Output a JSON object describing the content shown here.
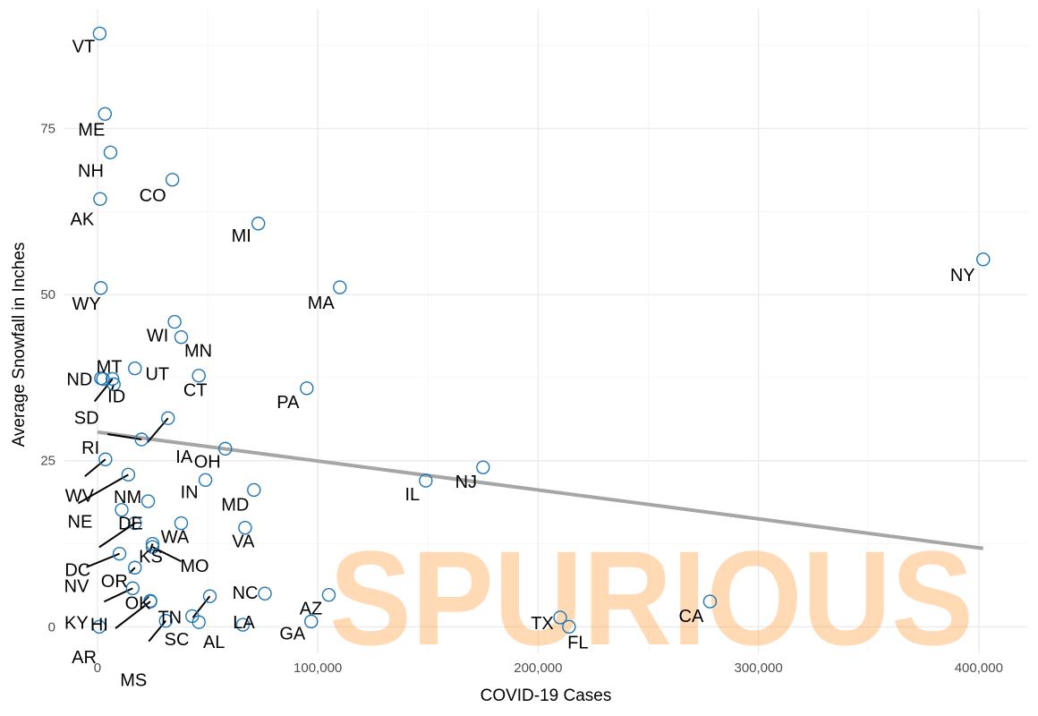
{
  "chart_data": {
    "type": "scatter",
    "title": "",
    "xlabel": "COVID-19 Cases",
    "ylabel": "Average Snowfall in Inches",
    "xlim": [
      -15000,
      422000
    ],
    "ylim": [
      -4,
      93
    ],
    "x_ticks": [
      0,
      100000,
      200000,
      300000,
      400000
    ],
    "x_tick_labels": [
      "0",
      "100,000",
      "200,000",
      "300,000",
      "400,000"
    ],
    "y_ticks": [
      0,
      25,
      50,
      75
    ],
    "y_tick_labels": [
      "0",
      "25",
      "50",
      "75"
    ],
    "grid": true,
    "legend": "none",
    "point_color": "#1f77b4",
    "trend_color": "#a6a6a6",
    "watermark": "SPURIOUS",
    "watermark_color": "#ffa64d",
    "trendline": {
      "x": [
        0,
        402000
      ],
      "y": [
        29.3,
        11.8
      ]
    },
    "points": [
      {
        "label": "VT",
        "x": 1000,
        "y": 89.3
      },
      {
        "label": "ME",
        "x": 3400,
        "y": 77.2
      },
      {
        "label": "NH",
        "x": 5900,
        "y": 71.4
      },
      {
        "label": "CO",
        "x": 34000,
        "y": 67.3
      },
      {
        "label": "AK",
        "x": 1200,
        "y": 64.4
      },
      {
        "label": "MI",
        "x": 73000,
        "y": 60.7
      },
      {
        "label": "NY",
        "x": 402000,
        "y": 55.3
      },
      {
        "label": "WY",
        "x": 1500,
        "y": 51.0
      },
      {
        "label": "MA",
        "x": 110000,
        "y": 51.1
      },
      {
        "label": "WI",
        "x": 35000,
        "y": 45.9
      },
      {
        "label": "MN",
        "x": 38000,
        "y": 43.6
      },
      {
        "label": "MT",
        "x": 2500,
        "y": 37.3
      },
      {
        "label": "UT",
        "x": 17000,
        "y": 38.9
      },
      {
        "label": "ND",
        "x": 1600,
        "y": 37.4
      },
      {
        "label": "ID",
        "x": 7400,
        "y": 36.5
      },
      {
        "label": "CT",
        "x": 46000,
        "y": 37.8
      },
      {
        "label": "PA",
        "x": 95000,
        "y": 35.9
      },
      {
        "label": "SD",
        "x": 6800,
        "y": 37.3
      },
      {
        "label": "IA",
        "x": 32000,
        "y": 31.4
      },
      {
        "label": "RI",
        "x": 20000,
        "y": 28.2
      },
      {
        "label": "OH",
        "x": 58000,
        "y": 26.8
      },
      {
        "label": "WV",
        "x": 3600,
        "y": 25.2
      },
      {
        "label": "NJ",
        "x": 175000,
        "y": 24.0
      },
      {
        "label": "IL",
        "x": 149000,
        "y": 22.0
      },
      {
        "label": "IN",
        "x": 49000,
        "y": 22.1
      },
      {
        "label": "NE",
        "x": 14000,
        "y": 22.9
      },
      {
        "label": "MD",
        "x": 71000,
        "y": 20.6
      },
      {
        "label": "NM",
        "x": 23000,
        "y": 18.9
      },
      {
        "label": "DE",
        "x": 11000,
        "y": 17.6
      },
      {
        "label": "DC",
        "x": 17000,
        "y": 15.6
      },
      {
        "label": "WA",
        "x": 38000,
        "y": 15.6
      },
      {
        "label": "VA",
        "x": 67000,
        "y": 14.9
      },
      {
        "label": "KS",
        "x": 25000,
        "y": 12.5
      },
      {
        "label": "NV",
        "x": 10000,
        "y": 11.0
      },
      {
        "label": "MO",
        "x": 25000,
        "y": 12.0
      },
      {
        "label": "OR",
        "x": 17000,
        "y": 8.9
      },
      {
        "label": "KY",
        "x": 16000,
        "y": 5.8
      },
      {
        "label": "OK",
        "x": 24000,
        "y": 3.9
      },
      {
        "label": "NC",
        "x": 76000,
        "y": 5.0
      },
      {
        "label": "AZ",
        "x": 105000,
        "y": 4.8
      },
      {
        "label": "CA",
        "x": 278000,
        "y": 3.8
      },
      {
        "label": "HI",
        "x": 800,
        "y": 0.0
      },
      {
        "label": "TN",
        "x": 43000,
        "y": 1.6
      },
      {
        "label": "AR",
        "x": 24000,
        "y": 3.8
      },
      {
        "label": "MS",
        "x": 31000,
        "y": 0.9
      },
      {
        "label": "SC",
        "x": 51000,
        "y": 4.6
      },
      {
        "label": "AL",
        "x": 46000,
        "y": 0.7
      },
      {
        "label": "LA",
        "x": 66000,
        "y": 0.3
      },
      {
        "label": "GA",
        "x": 97000,
        "y": 0.8
      },
      {
        "label": "TX",
        "x": 210000,
        "y": 1.4
      },
      {
        "label": "FL",
        "x": 214000,
        "y": 0.0
      }
    ]
  }
}
